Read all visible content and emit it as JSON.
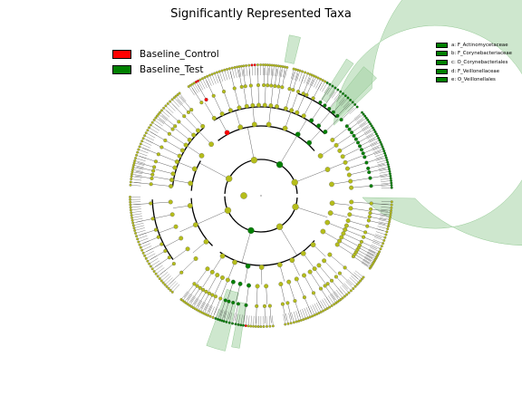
{
  "title": "Significantly Represented Taxa",
  "legend": [
    {
      "label": "Baseline_Control",
      "color": "#ff0000"
    },
    {
      "label": "Baseline_Test",
      "color": "#008000"
    }
  ],
  "clade_legend": [
    {
      "label": "a: F_Actinomycetaceae",
      "color": "#008000"
    },
    {
      "label": "b: F_Corynebacteriaceae",
      "color": "#008000"
    },
    {
      "label": "c: O_Corynebacteriales",
      "color": "#008000"
    },
    {
      "label": "d: F_Veillonellaceae",
      "color": "#008000"
    },
    {
      "label": "e: O_Veillonellales",
      "color": "#008000"
    }
  ],
  "colors": {
    "node_default": "#b5bd1a",
    "node_control": "#ff0000",
    "node_test": "#008000",
    "highlight_fill": "#a6d4a6"
  },
  "chart_type": "cladogram"
}
